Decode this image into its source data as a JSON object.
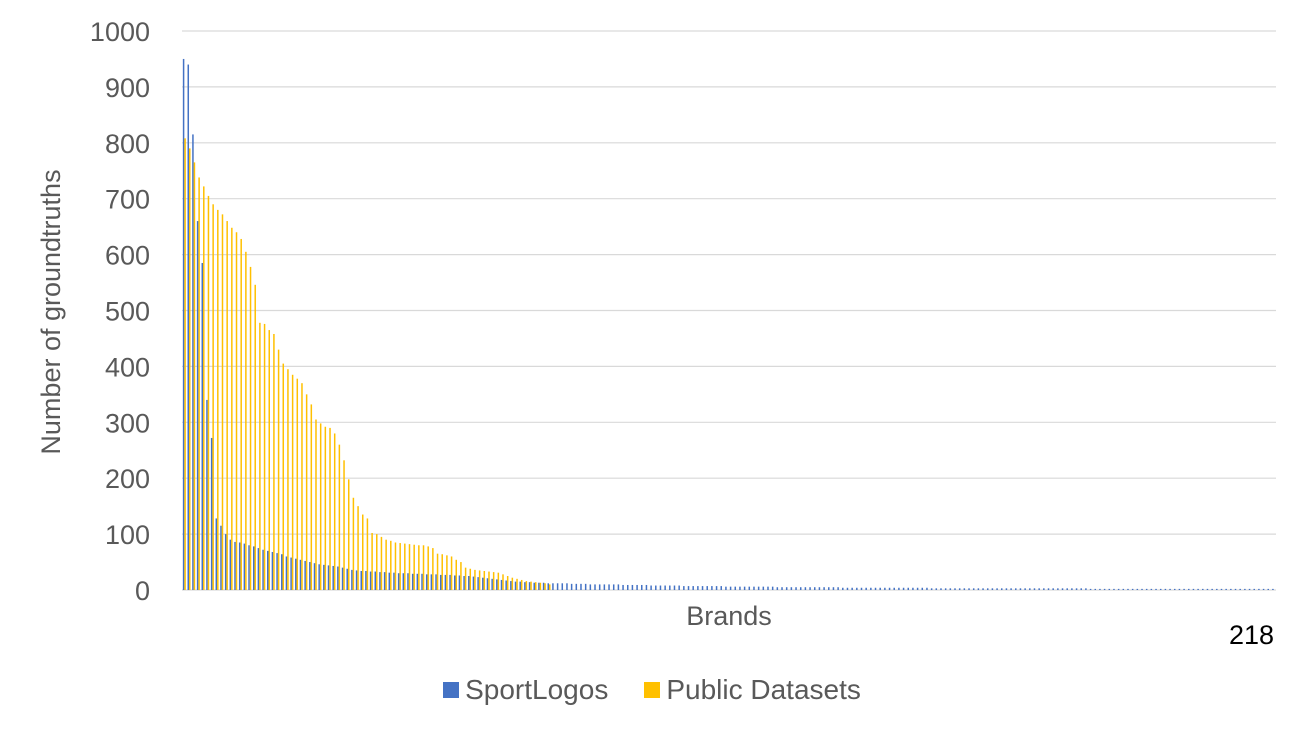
{
  "chart_data": {
    "type": "bar",
    "xlabel": "Brands",
    "ylabel": "Number of groundtruths",
    "ylim": [
      0,
      1000
    ],
    "yticks": [
      0,
      100,
      200,
      300,
      400,
      500,
      600,
      700,
      800,
      900,
      1000
    ],
    "x_end_label": "218",
    "grid": true,
    "legend_position": "bottom",
    "series": [
      {
        "name": "SportLogos",
        "color": "#4472C4",
        "values": [
          950,
          940,
          815,
          660,
          585,
          340,
          272,
          128,
          115,
          100,
          90,
          86,
          85,
          83,
          80,
          78,
          75,
          72,
          70,
          68,
          66,
          64,
          60,
          58,
          56,
          54,
          52,
          50,
          48,
          46,
          45,
          44,
          43,
          42,
          40,
          38,
          36,
          35,
          34,
          34,
          33,
          33,
          32,
          32,
          31,
          31,
          30,
          30,
          30,
          29,
          29,
          29,
          28,
          28,
          28,
          27,
          27,
          27,
          26,
          26,
          25,
          25,
          24,
          23,
          22,
          21,
          20,
          19,
          18,
          17,
          16,
          15,
          15,
          14,
          14,
          13,
          13,
          13,
          12,
          12,
          12,
          12,
          12,
          11,
          11,
          11,
          11,
          10,
          10,
          10,
          10,
          10,
          10,
          10,
          9,
          9,
          9,
          9,
          9,
          9,
          8,
          8,
          8,
          8,
          8,
          8,
          8,
          7,
          7,
          7,
          7,
          7,
          7,
          7,
          7,
          7,
          6,
          6,
          6,
          6,
          6,
          6,
          6,
          6,
          6,
          6,
          6,
          5,
          5,
          5,
          5,
          5,
          5,
          5,
          5,
          5,
          5,
          5,
          5,
          5,
          5,
          4,
          4,
          4,
          4,
          4,
          4,
          4,
          4,
          4,
          4,
          4,
          4,
          4,
          4,
          4,
          4,
          4,
          4,
          4,
          3,
          3,
          3,
          3,
          3,
          3,
          3,
          3,
          3,
          3,
          3,
          3,
          3,
          3,
          3,
          3,
          3,
          3,
          3,
          3,
          3,
          3,
          3,
          3,
          3,
          3,
          3,
          3,
          3,
          3,
          3,
          3,
          3,
          3,
          2,
          2,
          2,
          2,
          2,
          2,
          2,
          2,
          2,
          2,
          2,
          2,
          2,
          2,
          2,
          2,
          2,
          2,
          2,
          2,
          2,
          2,
          2,
          2,
          2,
          2,
          2,
          2,
          2,
          2,
          2,
          2,
          2,
          2,
          2,
          2,
          2,
          2,
          2,
          2
        ]
      },
      {
        "name": "Public Datasets",
        "color": "#FFC000",
        "values": [
          808,
          790,
          765,
          738,
          722,
          705,
          690,
          680,
          672,
          660,
          648,
          640,
          628,
          605,
          578,
          546,
          478,
          476,
          465,
          458,
          430,
          405,
          395,
          385,
          378,
          370,
          350,
          332,
          305,
          298,
          292,
          290,
          280,
          260,
          232,
          198,
          165,
          150,
          135,
          128,
          102,
          100,
          95,
          90,
          88,
          85,
          84,
          83,
          82,
          81,
          80,
          80,
          78,
          75,
          65,
          64,
          62,
          60,
          54,
          50,
          40,
          38,
          36,
          35,
          34,
          33,
          32,
          31,
          28,
          25,
          22,
          20,
          18,
          16,
          15,
          14,
          13,
          12,
          10
        ]
      }
    ]
  }
}
